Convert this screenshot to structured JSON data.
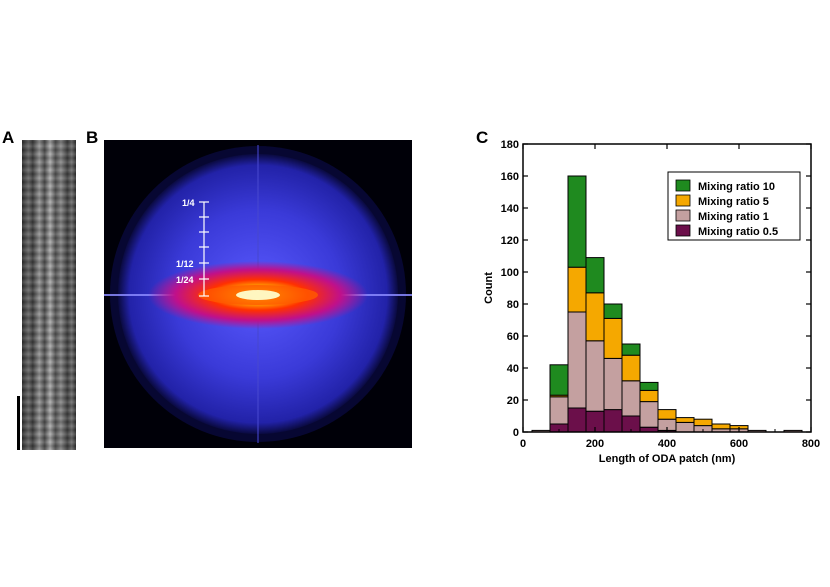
{
  "panels": {
    "a": "A",
    "b": "B",
    "c": "C"
  },
  "fft_labels": [
    "1/4",
    "1/12",
    "1/24"
  ],
  "chart_data": {
    "type": "bar",
    "stacked": true,
    "xlabel": "Length of ODA patch (nm)",
    "ylabel": "Count",
    "xlim": [
      0,
      800
    ],
    "ylim": [
      0,
      180
    ],
    "xticks": [
      "0",
      "200",
      "400",
      "600",
      "800"
    ],
    "yticks": [
      "0",
      "20",
      "40",
      "60",
      "80",
      "100",
      "120",
      "140",
      "160",
      "180"
    ],
    "bin_width": 50,
    "x": [
      50,
      100,
      150,
      200,
      250,
      300,
      350,
      400,
      450,
      500,
      550,
      600,
      650,
      700,
      750
    ],
    "series": [
      {
        "name": "Mixing ratio 0.5",
        "color": "#6b0f4a",
        "values": [
          0,
          5,
          15,
          13,
          14,
          10,
          3,
          1,
          0,
          0,
          0,
          0,
          0,
          0,
          0
        ]
      },
      {
        "name": "Mixing ratio 1",
        "color": "#c4a0a0",
        "values": [
          1,
          17,
          60,
          44,
          32,
          22,
          16,
          7,
          6,
          4,
          2,
          2,
          1,
          0,
          1
        ]
      },
      {
        "name": "Mixing ratio 5",
        "color": "#f5a800",
        "values": [
          0,
          1,
          28,
          30,
          25,
          16,
          7,
          6,
          3,
          4,
          3,
          2,
          0,
          0,
          0
        ]
      },
      {
        "name": "Mixing ratio 10",
        "color": "#1f8a1f",
        "values": [
          0,
          19,
          57,
          22,
          9,
          7,
          5,
          0,
          0,
          0,
          0,
          0,
          0,
          0,
          0
        ]
      }
    ],
    "legend_order": [
      "Mixing ratio 10",
      "Mixing ratio 5",
      "Mixing ratio 1",
      "Mixing ratio 0.5"
    ],
    "legend_position": "top-right"
  }
}
